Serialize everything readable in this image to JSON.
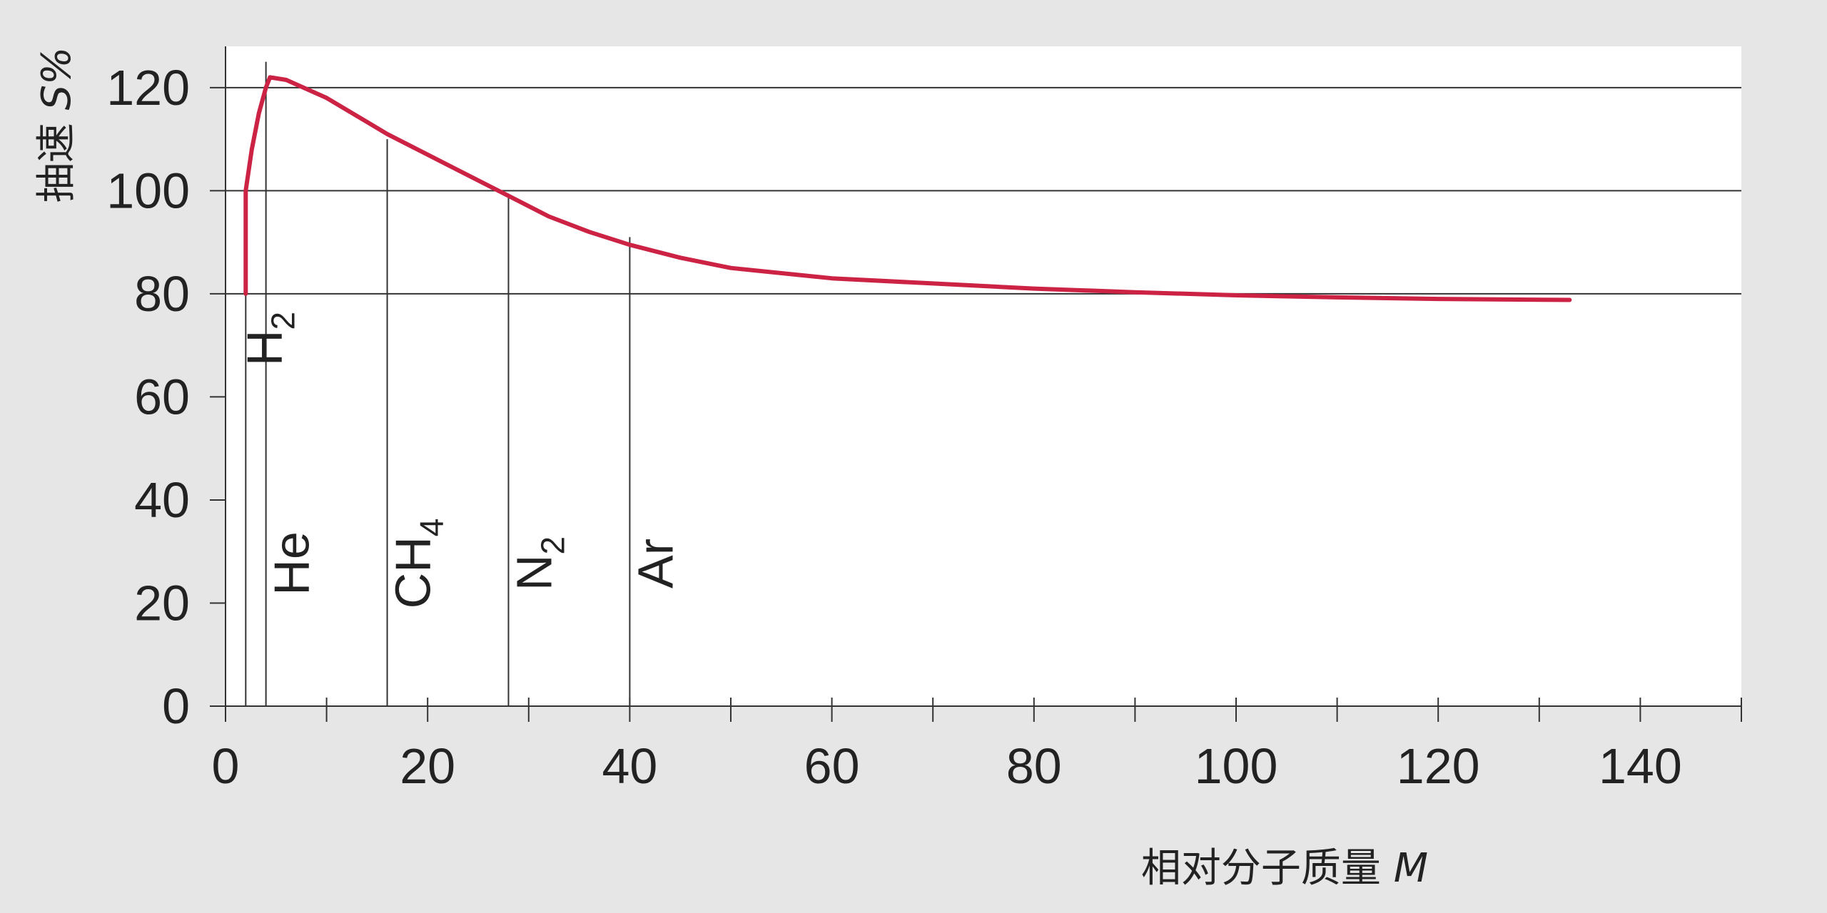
{
  "chart_data": {
    "type": "line",
    "x_axis": {
      "label_text": "相对分子质量",
      "label_var": "M",
      "range": [
        0,
        150
      ],
      "ticks": [
        0,
        20,
        40,
        60,
        80,
        100,
        120,
        140
      ],
      "minor_ticks": [
        10,
        30,
        50,
        70,
        90,
        100,
        110,
        130,
        150
      ]
    },
    "y_axis": {
      "label_text": "抽速",
      "label_var": "S%",
      "range": [
        0,
        128
      ],
      "ticks": [
        0,
        20,
        40,
        60,
        80,
        100,
        120
      ]
    },
    "gridlines_y": [
      80,
      100,
      120
    ],
    "series": [
      {
        "color": "#cc2244",
        "points": [
          [
            2,
            80
          ],
          [
            2,
            100
          ],
          [
            2.6,
            108
          ],
          [
            3.3,
            115
          ],
          [
            4,
            120
          ],
          [
            4.4,
            122
          ],
          [
            6,
            121.5
          ],
          [
            10,
            118
          ],
          [
            16,
            111
          ],
          [
            20,
            107
          ],
          [
            24,
            103
          ],
          [
            28,
            99
          ],
          [
            32,
            95
          ],
          [
            36,
            92
          ],
          [
            40,
            89.5
          ],
          [
            45,
            87
          ],
          [
            50,
            85
          ],
          [
            60,
            83
          ],
          [
            70,
            82
          ],
          [
            80,
            81
          ],
          [
            90,
            80.3
          ],
          [
            100,
            79.7
          ],
          [
            110,
            79.3
          ],
          [
            120,
            79
          ],
          [
            133,
            78.8
          ]
        ]
      }
    ],
    "markers": [
      {
        "x": 2,
        "top": 100,
        "label": "H",
        "sub": "2",
        "label_pos": "below-80"
      },
      {
        "x": 4,
        "top": 125,
        "label": "He",
        "sub": "",
        "label_pos": "middle"
      },
      {
        "x": 16,
        "top": 110,
        "label": "CH",
        "sub": "4",
        "label_pos": "middle"
      },
      {
        "x": 28,
        "top": 99,
        "label": "N",
        "sub": "2",
        "label_pos": "middle"
      },
      {
        "x": 40,
        "top": 91,
        "label": "Ar",
        "sub": "",
        "label_pos": "middle"
      }
    ]
  }
}
